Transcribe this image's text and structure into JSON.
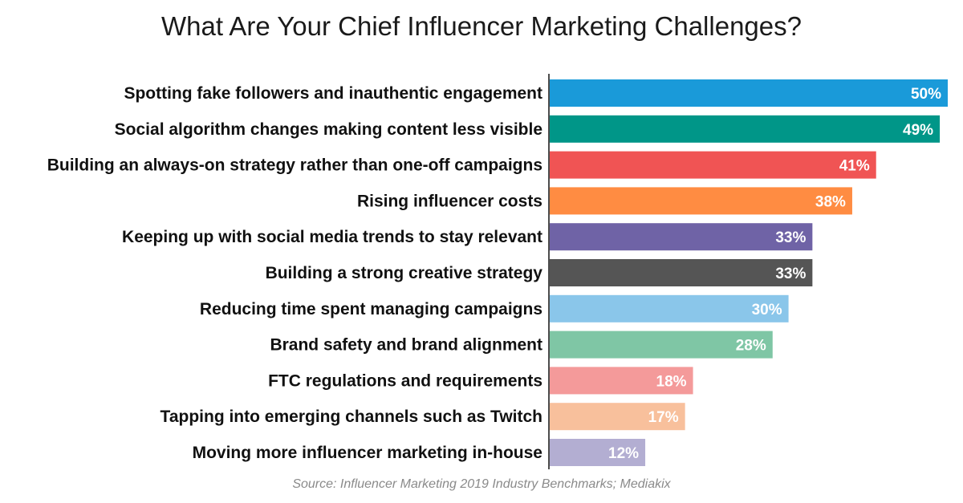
{
  "chart_data": {
    "type": "bar",
    "orientation": "horizontal",
    "title": "What Are Your Chief Influencer Marketing Challenges?",
    "source": "Source: Influencer Marketing 2019 Industry Benchmarks; Mediakix",
    "value_suffix": "%",
    "xlim": [
      0,
      50
    ],
    "grid": false,
    "categories": [
      "Spotting fake followers and inauthentic engagement",
      "Social algorithm changes making content less visible",
      "Building an always-on strategy rather than one-off campaigns",
      "Rising influencer costs",
      "Keeping up with social media trends to stay relevant",
      "Building a strong creative strategy",
      "Reducing time spent managing campaigns",
      "Brand safety and brand alignment",
      "FTC regulations and requirements",
      "Tapping into emerging channels such as Twitch",
      "Moving more influencer marketing in-house"
    ],
    "values": [
      50,
      49,
      41,
      38,
      33,
      33,
      30,
      28,
      18,
      17,
      12
    ],
    "colors": [
      "#1a9ad9",
      "#009688",
      "#f05454",
      "#ff8c42",
      "#6f63a6",
      "#555555",
      "#8ac6ea",
      "#7fc6a5",
      "#f49a9a",
      "#f8c09c",
      "#b3aed2"
    ]
  }
}
